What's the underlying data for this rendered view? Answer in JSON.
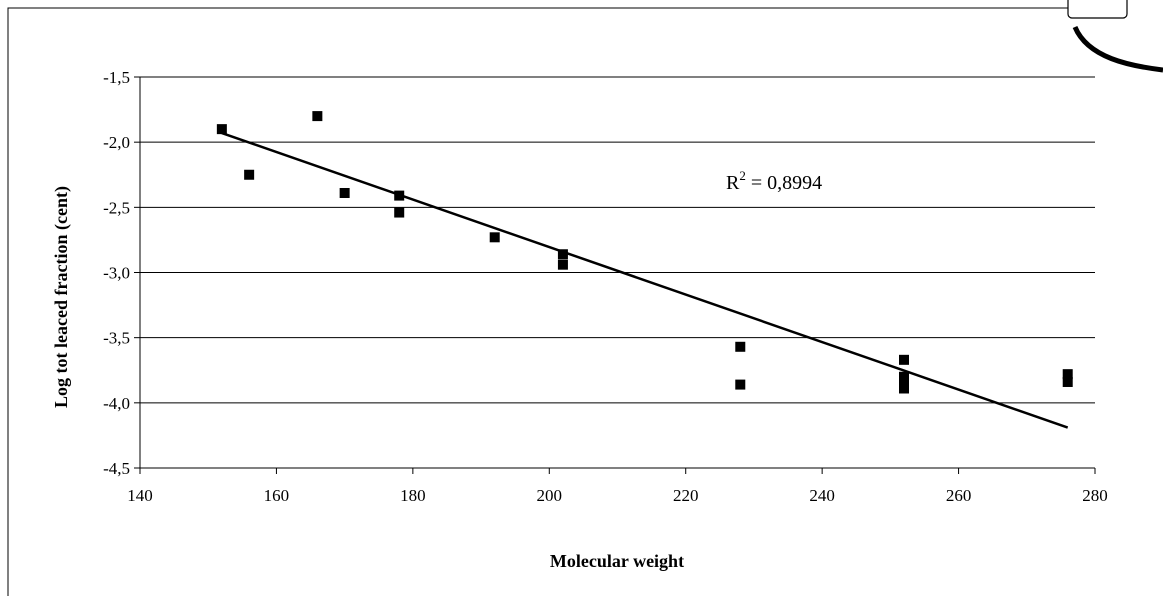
{
  "chart_data": {
    "type": "scatter",
    "xlabel": "Molecular weight",
    "ylabel": "Log tot leaced fraction (cent)",
    "xlim": [
      140,
      280
    ],
    "ylim": [
      -4.5,
      -1.5
    ],
    "x_ticks": [
      140,
      160,
      180,
      200,
      220,
      240,
      260,
      280
    ],
    "x_tick_labels": [
      "140",
      "160",
      "180",
      "200",
      "220",
      "240",
      "260",
      "280"
    ],
    "y_ticks": [
      -1.5,
      -2.0,
      -2.5,
      -3.0,
      -3.5,
      -4.0,
      -4.5
    ],
    "y_tick_labels": [
      "-1,5",
      "-2,0",
      "-2,5",
      "-3,0",
      "-3,5",
      "-4,0",
      "-4,5"
    ],
    "grid": "horizontal",
    "points": [
      {
        "x": 152,
        "y": -1.9
      },
      {
        "x": 156,
        "y": -2.25
      },
      {
        "x": 166,
        "y": -1.8
      },
      {
        "x": 170,
        "y": -2.39
      },
      {
        "x": 178,
        "y": -2.41
      },
      {
        "x": 178,
        "y": -2.54
      },
      {
        "x": 192,
        "y": -2.73
      },
      {
        "x": 202,
        "y": -2.86
      },
      {
        "x": 202,
        "y": -2.94
      },
      {
        "x": 228,
        "y": -3.57
      },
      {
        "x": 228,
        "y": -3.86
      },
      {
        "x": 252,
        "y": -3.67
      },
      {
        "x": 252,
        "y": -3.8
      },
      {
        "x": 252,
        "y": -3.85
      },
      {
        "x": 252,
        "y": -3.89
      },
      {
        "x": 276,
        "y": -3.78
      },
      {
        "x": 276,
        "y": -3.84
      }
    ],
    "trendline": {
      "x": [
        152,
        276
      ],
      "y": [
        -1.93,
        -4.19
      ]
    },
    "annotation": {
      "text": "R",
      "superscript": "2",
      "rest": " = 0,8994"
    }
  }
}
